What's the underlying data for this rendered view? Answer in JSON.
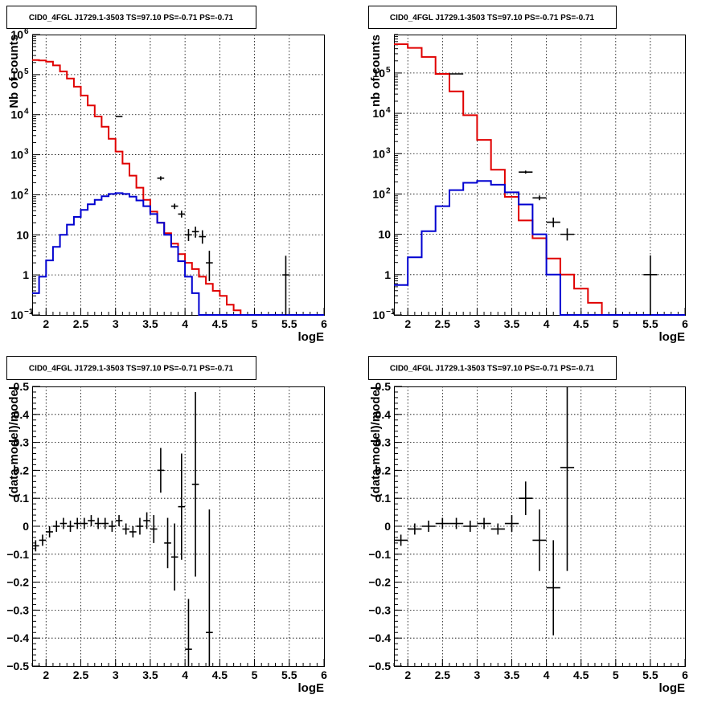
{
  "chart_data": [
    {
      "type": "step-histogram",
      "title": "CID0_4FGL J1729.1-3503 TS=97.10 PS=-0.71 PS=-0.71",
      "xlabel": "logE",
      "ylabel": "Nb of counts",
      "xlim": [
        1.8,
        6.0
      ],
      "ylim": [
        0.1,
        1000000
      ],
      "yscale": "log",
      "grid": true,
      "xticks": [
        "2",
        "2.5",
        "3",
        "3.5",
        "4",
        "4.5",
        "5",
        "5.5",
        "6"
      ],
      "yticks": [
        {
          "value": 0.1,
          "mantissa": "10",
          "exp": "−1"
        },
        {
          "value": 1,
          "mantissa": "1",
          "exp": ""
        },
        {
          "value": 10,
          "mantissa": "10",
          "exp": ""
        },
        {
          "value": 100,
          "mantissa": "10",
          "exp": "2"
        },
        {
          "value": 1000,
          "mantissa": "10",
          "exp": "3"
        },
        {
          "value": 10000,
          "mantissa": "10",
          "exp": "4"
        },
        {
          "value": 100000,
          "mantissa": "10",
          "exp": "5"
        },
        {
          "value": 1000000,
          "mantissa": "10",
          "exp": "6"
        }
      ],
      "bin_edges_start": 1.8,
      "bin_width": 0.1,
      "series": [
        {
          "color": "#e00000",
          "values": [
            230000,
            225000,
            210000,
            170000,
            120000,
            80000,
            50000,
            30000,
            17000,
            9000,
            5000,
            2500,
            1200,
            600,
            300,
            150,
            75,
            38,
            20,
            11,
            6,
            3.3,
            2,
            1.4,
            0.9,
            0.6,
            0.4,
            0.3,
            0.18,
            0.13,
            0.1,
            0.1,
            0.1,
            0.1,
            0.1,
            0.1,
            0.1,
            0.1,
            0.1,
            0.1,
            0.1,
            0.1
          ]
        },
        {
          "color": "#0000d0",
          "values": [
            0.35,
            0.9,
            2.3,
            5,
            10,
            18,
            28,
            42,
            58,
            75,
            92,
            105,
            110,
            105,
            90,
            72,
            52,
            33,
            20,
            10,
            5,
            2.2,
            0.9,
            0.35,
            0.1,
            0.1,
            0.1,
            0.1,
            0.1,
            0.1,
            0.1,
            0.1,
            0.1,
            0.1,
            0.1,
            0.1,
            0.1,
            0.1,
            0.1,
            0.1,
            0.1,
            0.1
          ]
        }
      ],
      "points": [
        {
          "x": 3.05,
          "y": 9000,
          "xerr": 0.05,
          "ylo": 8800,
          "yhi": 9200
        },
        {
          "x": 3.65,
          "y": 260,
          "xerr": 0.05,
          "ylo": 230,
          "yhi": 290
        },
        {
          "x": 3.85,
          "y": 52,
          "xerr": 0.05,
          "ylo": 44,
          "yhi": 60
        },
        {
          "x": 3.95,
          "y": 33,
          "xerr": 0.05,
          "ylo": 27,
          "yhi": 40
        },
        {
          "x": 4.05,
          "y": 10,
          "xerr": 0.05,
          "ylo": 7,
          "yhi": 14
        },
        {
          "x": 4.15,
          "y": 12,
          "xerr": 0.05,
          "ylo": 8.5,
          "yhi": 16
        },
        {
          "x": 4.25,
          "y": 9,
          "xerr": 0.05,
          "ylo": 6,
          "yhi": 13
        },
        {
          "x": 4.35,
          "y": 2,
          "xerr": 0.05,
          "ylo": 0.7,
          "yhi": 4
        },
        {
          "x": 5.45,
          "y": 1,
          "xerr": 0.05,
          "ylo": 0.1,
          "yhi": 3
        }
      ]
    },
    {
      "type": "step-histogram",
      "title": "CID0_4FGL J1729.1-3503 TS=97.10 PS=-0.71 PS=-0.71",
      "xlabel": "logE",
      "ylabel": "nb of counts",
      "xlim": [
        1.8,
        6.0
      ],
      "ylim": [
        0.1,
        900000
      ],
      "yscale": "log",
      "grid": true,
      "xticks": [
        "2",
        "2.5",
        "3",
        "3.5",
        "4",
        "4.5",
        "5",
        "5.5",
        "6"
      ],
      "yticks": [
        {
          "value": 0.1,
          "mantissa": "10",
          "exp": "−1"
        },
        {
          "value": 1,
          "mantissa": "1",
          "exp": ""
        },
        {
          "value": 10,
          "mantissa": "10",
          "exp": ""
        },
        {
          "value": 100,
          "mantissa": "10",
          "exp": "2"
        },
        {
          "value": 1000,
          "mantissa": "10",
          "exp": "3"
        },
        {
          "value": 10000,
          "mantissa": "10",
          "exp": "4"
        },
        {
          "value": 100000,
          "mantissa": "10",
          "exp": "5"
        }
      ],
      "bin_edges_start": 1.8,
      "bin_width": 0.2,
      "series": [
        {
          "color": "#e00000",
          "values": [
            520000,
            420000,
            250000,
            95000,
            35000,
            9000,
            2200,
            400,
            85,
            22,
            8,
            2.5,
            1,
            0.45,
            0.2,
            0.1,
            0.1,
            0.1,
            0.1,
            0.1,
            0.1
          ]
        },
        {
          "color": "#0000d0",
          "values": [
            0.55,
            2.7,
            12,
            50,
            125,
            190,
            210,
            170,
            110,
            55,
            10,
            1,
            0.1,
            0.1,
            0.1,
            0.1,
            0.1,
            0.1,
            0.1,
            0.1,
            0.1
          ]
        }
      ],
      "points": [
        {
          "x": 2.7,
          "y": 95000,
          "xerr": 0.1,
          "ylo": 93000,
          "yhi": 97000
        },
        {
          "x": 3.7,
          "y": 350,
          "xerr": 0.1,
          "ylo": 320,
          "yhi": 380
        },
        {
          "x": 3.9,
          "y": 80,
          "xerr": 0.1,
          "ylo": 70,
          "yhi": 92
        },
        {
          "x": 4.1,
          "y": 20,
          "xerr": 0.1,
          "ylo": 15,
          "yhi": 26
        },
        {
          "x": 4.3,
          "y": 10,
          "xerr": 0.1,
          "ylo": 7,
          "yhi": 14
        },
        {
          "x": 5.5,
          "y": 1,
          "xerr": 0.1,
          "ylo": 0.1,
          "yhi": 3
        }
      ]
    },
    {
      "type": "scatter-errorbars",
      "title": "CID0_4FGL J1729.1-3503 TS=97.10 PS=-0.71 PS=-0.71",
      "xlabel": "logE",
      "ylabel": "(data-model)/model",
      "xlim": [
        1.8,
        6.0
      ],
      "ylim": [
        -0.5,
        0.5
      ],
      "grid": true,
      "xticks": [
        "2",
        "2.5",
        "3",
        "3.5",
        "4",
        "4.5",
        "5",
        "5.5",
        "6"
      ],
      "yticks": [
        "−0.5",
        "−0.4",
        "−0.3",
        "−0.2",
        "−0.1",
        "0",
        "0.1",
        "0.2",
        "0.3",
        "0.4",
        "0.5"
      ],
      "points": [
        {
          "x": 1.85,
          "y": -0.07,
          "xerr": 0.05,
          "yerr": 0.02
        },
        {
          "x": 1.95,
          "y": -0.05,
          "xerr": 0.05,
          "yerr": 0.02
        },
        {
          "x": 2.05,
          "y": -0.02,
          "xerr": 0.05,
          "yerr": 0.02
        },
        {
          "x": 2.15,
          "y": 0.0,
          "xerr": 0.05,
          "yerr": 0.02
        },
        {
          "x": 2.25,
          "y": 0.01,
          "xerr": 0.05,
          "yerr": 0.02
        },
        {
          "x": 2.35,
          "y": 0.0,
          "xerr": 0.05,
          "yerr": 0.02
        },
        {
          "x": 2.45,
          "y": 0.01,
          "xerr": 0.05,
          "yerr": 0.02
        },
        {
          "x": 2.55,
          "y": 0.01,
          "xerr": 0.05,
          "yerr": 0.02
        },
        {
          "x": 2.65,
          "y": 0.02,
          "xerr": 0.05,
          "yerr": 0.02
        },
        {
          "x": 2.75,
          "y": 0.01,
          "xerr": 0.05,
          "yerr": 0.02
        },
        {
          "x": 2.85,
          "y": 0.01,
          "xerr": 0.05,
          "yerr": 0.02
        },
        {
          "x": 2.95,
          "y": 0.0,
          "xerr": 0.05,
          "yerr": 0.02
        },
        {
          "x": 3.05,
          "y": 0.02,
          "xerr": 0.05,
          "yerr": 0.02
        },
        {
          "x": 3.15,
          "y": -0.01,
          "xerr": 0.05,
          "yerr": 0.02
        },
        {
          "x": 3.25,
          "y": -0.02,
          "xerr": 0.05,
          "yerr": 0.02
        },
        {
          "x": 3.35,
          "y": 0.0,
          "xerr": 0.05,
          "yerr": 0.03
        },
        {
          "x": 3.45,
          "y": 0.02,
          "xerr": 0.05,
          "yerr": 0.03
        },
        {
          "x": 3.55,
          "y": -0.01,
          "xerr": 0.05,
          "yerr": 0.05
        },
        {
          "x": 3.65,
          "y": 0.2,
          "xerr": 0.05,
          "yerr": 0.08
        },
        {
          "x": 3.75,
          "y": -0.06,
          "xerr": 0.05,
          "yerr": 0.09
        },
        {
          "x": 3.85,
          "y": -0.11,
          "xerr": 0.05,
          "yerr": 0.12
        },
        {
          "x": 3.95,
          "y": 0.07,
          "xerr": 0.05,
          "yerr": 0.19
        },
        {
          "x": 4.05,
          "y": -0.44,
          "xerr": 0.05,
          "yerr": 0.18
        },
        {
          "x": 4.15,
          "y": 0.15,
          "xerr": 0.05,
          "yerr": 0.33
        },
        {
          "x": 4.35,
          "y": -0.38,
          "xerr": 0.05,
          "yerr": 0.44
        }
      ]
    },
    {
      "type": "scatter-errorbars",
      "title": "CID0_4FGL J1729.1-3503 TS=97.10 PS=-0.71 PS=-0.71",
      "xlabel": "logE",
      "ylabel": "(data-model)/model",
      "xlim": [
        1.8,
        6.0
      ],
      "ylim": [
        -0.5,
        0.5
      ],
      "grid": true,
      "xticks": [
        "2",
        "2.5",
        "3",
        "3.5",
        "4",
        "4.5",
        "5",
        "5.5",
        "6"
      ],
      "yticks": [
        "−0.5",
        "−0.4",
        "−0.3",
        "−0.2",
        "−0.1",
        "0",
        "0.1",
        "0.2",
        "0.3",
        "0.4",
        "0.5"
      ],
      "points": [
        {
          "x": 1.9,
          "y": -0.05,
          "xerr": 0.1,
          "yerr": 0.02
        },
        {
          "x": 2.1,
          "y": -0.01,
          "xerr": 0.1,
          "yerr": 0.02
        },
        {
          "x": 2.3,
          "y": 0.0,
          "xerr": 0.1,
          "yerr": 0.02
        },
        {
          "x": 2.5,
          "y": 0.01,
          "xerr": 0.1,
          "yerr": 0.02
        },
        {
          "x": 2.7,
          "y": 0.01,
          "xerr": 0.1,
          "yerr": 0.02
        },
        {
          "x": 2.9,
          "y": 0.0,
          "xerr": 0.1,
          "yerr": 0.02
        },
        {
          "x": 3.1,
          "y": 0.01,
          "xerr": 0.1,
          "yerr": 0.02
        },
        {
          "x": 3.3,
          "y": -0.01,
          "xerr": 0.1,
          "yerr": 0.02
        },
        {
          "x": 3.5,
          "y": 0.01,
          "xerr": 0.1,
          "yerr": 0.03
        },
        {
          "x": 3.7,
          "y": 0.1,
          "xerr": 0.1,
          "yerr": 0.06
        },
        {
          "x": 3.9,
          "y": -0.05,
          "xerr": 0.1,
          "yerr": 0.11
        },
        {
          "x": 4.1,
          "y": -0.22,
          "xerr": 0.1,
          "yerr": 0.17
        },
        {
          "x": 4.3,
          "y": 0.21,
          "xerr": 0.1,
          "yerr": 0.37
        }
      ]
    }
  ]
}
